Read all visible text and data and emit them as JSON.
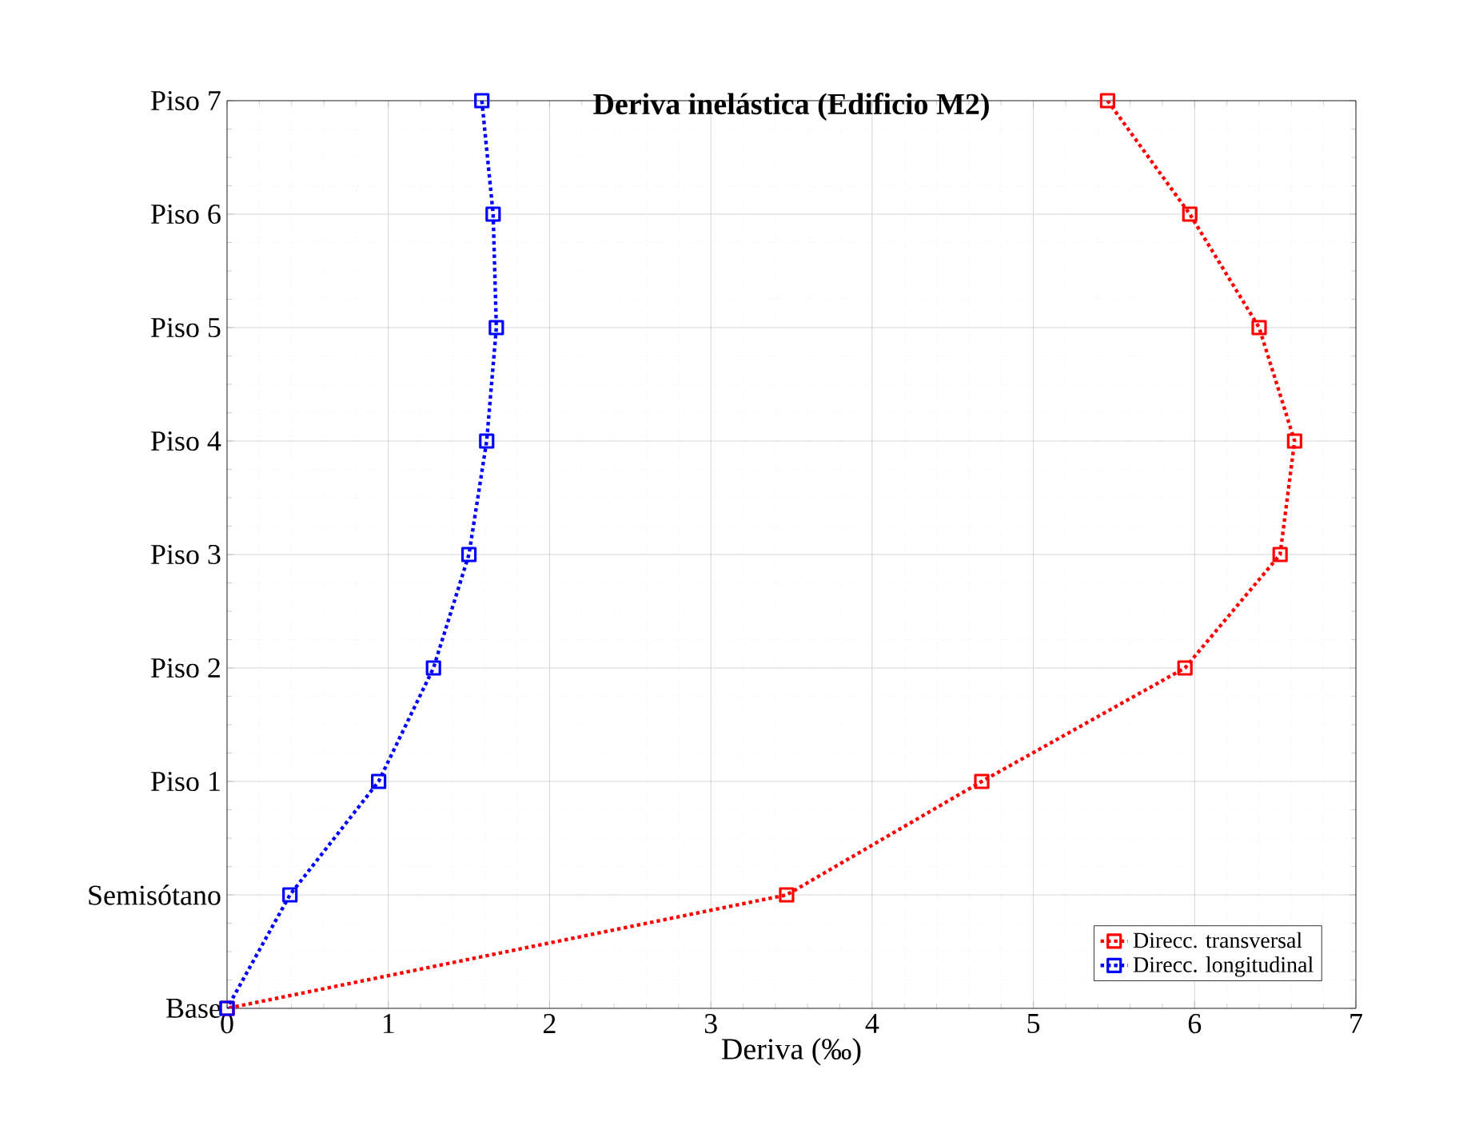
{
  "chart_data": {
    "type": "line",
    "orientation": "horizontal",
    "title": "**Deriva inelástica (Edificio M2)**",
    "xlabel": "Deriva (‰)",
    "categories": [
      "Piso 7",
      "Piso 6",
      "Piso 5",
      "Piso 4",
      "Piso 3",
      "Piso 2",
      "Piso 1",
      "Semisótano",
      "Base"
    ],
    "series": [
      {
        "name": "Direcc. transversal",
        "color": "#ff0000",
        "values": [
          5.46,
          5.97,
          6.4,
          6.62,
          6.53,
          5.94,
          4.68,
          3.47,
          0
        ]
      },
      {
        "name": "Direcc. longitudinal",
        "color": "#0000ff",
        "values": [
          1.58,
          1.65,
          1.67,
          1.61,
          1.5,
          1.28,
          0.94,
          0.39,
          0
        ]
      }
    ],
    "xlim": [
      0,
      7
    ],
    "xticks": [
      0,
      1,
      2,
      3,
      4,
      5,
      6,
      7
    ],
    "grid": true,
    "legend": "bottom right",
    "marker": "square",
    "line_style": "dotted"
  }
}
